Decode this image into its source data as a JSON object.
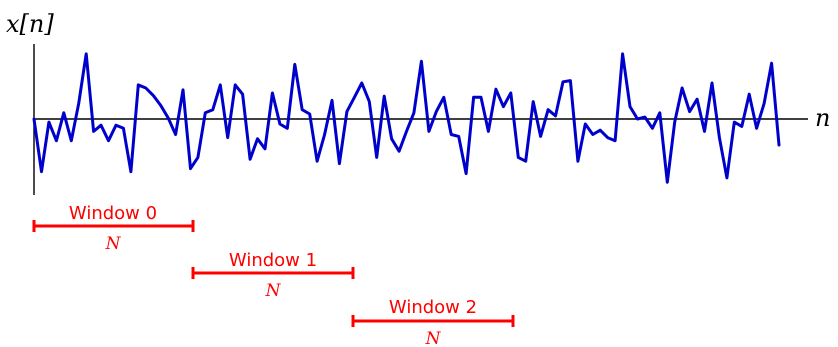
{
  "axes": {
    "y_label": "x[n]",
    "x_label": "n"
  },
  "colors": {
    "signal": "#0000cc",
    "axes": "#000000",
    "window": "#ff0000"
  },
  "signal": {
    "n_start": 0,
    "samples": [
      0.0,
      -0.85,
      -0.05,
      -0.35,
      0.1,
      -0.35,
      0.25,
      1.05,
      -0.2,
      -0.1,
      -0.35,
      -0.1,
      -0.15,
      -0.85,
      0.55,
      0.5,
      0.38,
      0.22,
      0.02,
      -0.25,
      0.47,
      -0.8,
      -0.62,
      0.1,
      0.15,
      0.55,
      -0.3,
      0.55,
      0.4,
      -0.65,
      -0.32,
      -0.48,
      0.42,
      -0.08,
      -0.15,
      0.88,
      0.15,
      0.08,
      -0.68,
      -0.25,
      0.3,
      -0.72,
      0.12,
      0.35,
      0.58,
      0.28,
      -0.62,
      0.37,
      -0.32,
      -0.52,
      -0.2,
      0.1,
      0.93,
      -0.2,
      0.12,
      0.35,
      -0.25,
      -0.28,
      -0.88,
      0.35,
      0.35,
      -0.2,
      0.48,
      0.2,
      0.42,
      -0.62,
      -0.68,
      0.28,
      -0.28,
      0.15,
      0.05,
      0.6,
      0.62,
      -0.68,
      -0.08,
      -0.25,
      -0.18,
      -0.3,
      -0.35,
      1.05,
      0.2,
      0.0,
      0.03,
      -0.15,
      0.1,
      -1.02,
      -0.05,
      0.5,
      0.12,
      0.32,
      -0.2,
      0.58,
      -0.3,
      -0.95,
      -0.05,
      -0.12,
      0.4,
      -0.15,
      0.25,
      0.9,
      -0.42
    ]
  },
  "windows": [
    {
      "title": "Window 0",
      "length_label": "N"
    },
    {
      "title": "Window 1",
      "length_label": "N"
    },
    {
      "title": "Window 2",
      "length_label": "N"
    }
  ]
}
